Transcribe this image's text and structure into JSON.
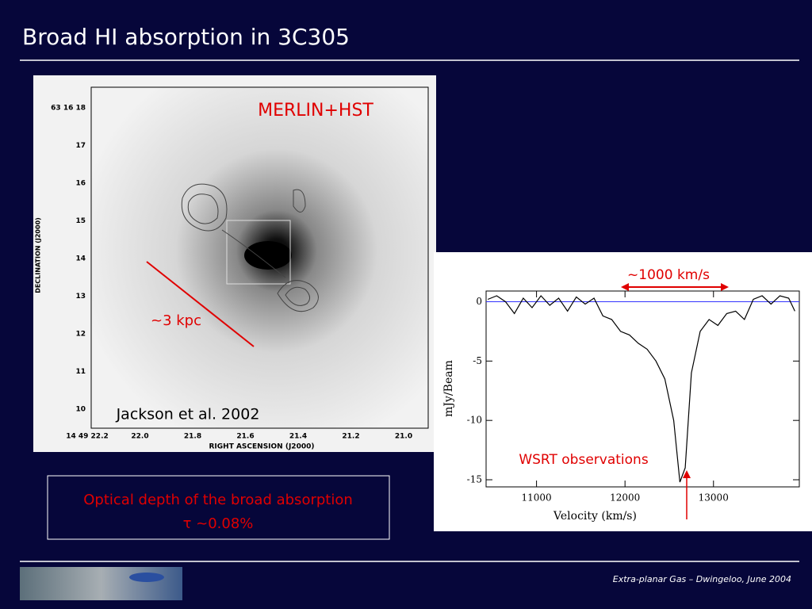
{
  "slide": {
    "title": "Broad HI absorption in 3C305",
    "footer": "Extra-planar Gas – Dwingeloo, June 2004",
    "image": {
      "label": "MERLIN+HST",
      "scale_label": "~3 kpc",
      "citation": "Jackson et al. 2002",
      "y_axis_label": "DECLINATION (J2000)",
      "x_axis_label": "RIGHT ASCENSION (J2000)",
      "yticks": [
        "63 16 18",
        "17",
        "16",
        "15",
        "14",
        "13",
        "12",
        "11",
        "10"
      ],
      "xticks": [
        "14 49 22.2",
        "22.0",
        "21.8",
        "21.6",
        "21.4",
        "21.2",
        "21.0"
      ]
    },
    "note": {
      "line1": "Optical depth of the broad absorption",
      "line2": "τ ~0.08%"
    }
  },
  "chart_data": {
    "type": "line",
    "width_label": "~1000 km/s",
    "annotation": "WSRT observations",
    "x_label": "Velocity (km/s)",
    "y_label": "mJy/Beam",
    "xlim": [
      10430,
      13970
    ],
    "ylim": [
      -15.6,
      0.9
    ],
    "xticks": [
      11000,
      12000,
      13000
    ],
    "yticks": [
      0,
      -5,
      -10,
      -15
    ],
    "baseline": 0,
    "baseline_color": "#3333ff",
    "series": [
      {
        "color": "#000000",
        "x": [
          10450,
          10550,
          10650,
          10750,
          10850,
          10950,
          11050,
          11150,
          11250,
          11350,
          11450,
          11550,
          11650,
          11750,
          11850,
          11950,
          12050,
          12150,
          12250,
          12350,
          12450,
          12550,
          12620,
          12680,
          12750,
          12850,
          12950,
          13050,
          13150,
          13250,
          13350,
          13450,
          13550,
          13650,
          13750,
          13850,
          13920
        ],
        "values": [
          0.2,
          0.5,
          0,
          -1,
          0.3,
          -0.5,
          0.5,
          -0.3,
          0.3,
          -0.8,
          0.4,
          -0.2,
          0.3,
          -1.2,
          -1.5,
          -2.5,
          -2.8,
          -3.5,
          -4,
          -5,
          -6.5,
          -10,
          -15.2,
          -14,
          -6,
          -2.5,
          -1.5,
          -2,
          -1,
          -0.8,
          -1.5,
          0.2,
          0.5,
          -0.2,
          0.5,
          0.3,
          -0.8
        ]
      }
    ]
  }
}
